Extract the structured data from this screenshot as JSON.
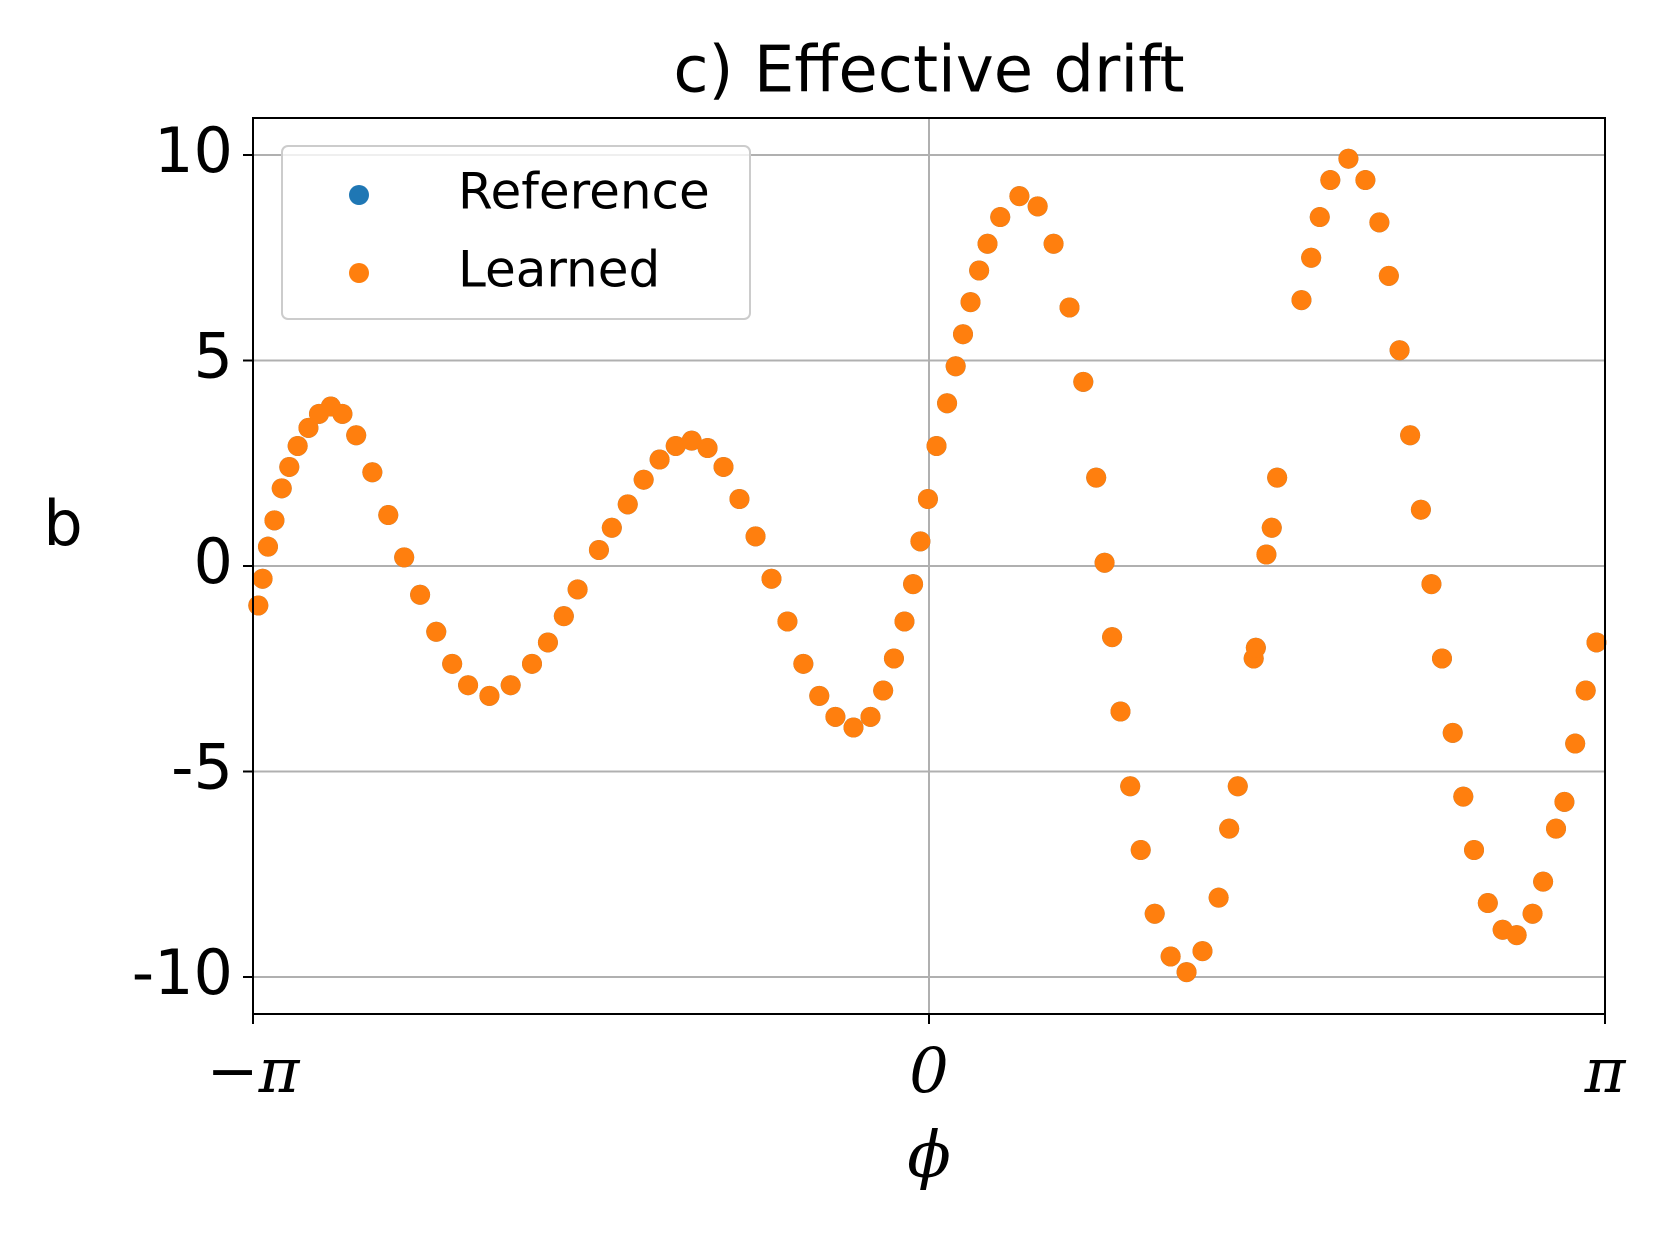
{
  "chart_data": {
    "type": "scatter",
    "title": "c) Effective drift",
    "x_label": "ϕ",
    "y_label": "b",
    "x": [
      -3.117,
      -3.097,
      -3.072,
      -3.042,
      -3.008,
      -2.973,
      -2.934,
      -2.884,
      -2.835,
      -2.78,
      -2.726,
      -2.662,
      -2.587,
      -2.513,
      -2.439,
      -2.365,
      -2.29,
      -2.216,
      -2.142,
      -2.043,
      -1.944,
      -1.845,
      -1.771,
      -1.697,
      -1.633,
      -1.534,
      -1.474,
      -1.4,
      -1.326,
      -1.252,
      -1.177,
      -1.103,
      -1.029,
      -0.955,
      -0.881,
      -0.806,
      -0.732,
      -0.658,
      -0.584,
      -0.51,
      -0.435,
      -0.351,
      -0.272,
      -0.213,
      -0.163,
      -0.114,
      -0.074,
      -0.04,
      -0.005,
      0.035,
      0.084,
      0.124,
      0.158,
      0.193,
      0.233,
      0.272,
      0.331,
      0.42,
      0.505,
      0.579,
      0.653,
      0.717,
      0.777,
      0.816,
      0.851,
      0.89,
      0.935,
      0.984,
      1.049,
      1.123,
      1.197,
      1.271,
      1.346,
      1.395,
      1.435,
      1.509,
      1.519,
      1.568,
      1.593,
      1.618,
      1.731,
      1.776,
      1.816,
      1.865,
      1.949,
      2.028,
      2.093,
      2.137,
      2.187,
      2.236,
      2.286,
      2.335,
      2.384,
      2.434,
      2.483,
      2.533,
      2.597,
      2.666,
      2.731,
      2.805,
      2.854,
      2.914,
      2.953,
      3.003,
      3.052,
      3.102
    ],
    "series": [
      {
        "name": "Reference",
        "color": "#1f77b4",
        "values": [
          -0.96,
          -0.31,
          0.47,
          1.11,
          1.89,
          2.41,
          2.92,
          3.36,
          3.7,
          3.88,
          3.7,
          3.18,
          2.28,
          1.24,
          0.21,
          -0.7,
          -1.6,
          -2.38,
          -2.9,
          -3.16,
          -2.9,
          -2.38,
          -1.86,
          -1.22,
          -0.57,
          0.39,
          0.93,
          1.5,
          2.1,
          2.59,
          2.92,
          3.05,
          2.87,
          2.41,
          1.63,
          0.72,
          -0.31,
          -1.35,
          -2.38,
          -3.16,
          -3.67,
          -3.93,
          -3.67,
          -3.03,
          -2.25,
          -1.35,
          -0.44,
          0.6,
          1.63,
          2.92,
          3.96,
          4.86,
          5.64,
          6.42,
          7.19,
          7.84,
          8.49,
          9.0,
          8.75,
          7.84,
          6.29,
          4.48,
          2.15,
          0.08,
          -1.73,
          -3.54,
          -5.36,
          -6.91,
          -8.46,
          -9.5,
          -9.88,
          -9.37,
          -8.07,
          -6.39,
          -5.36,
          -2.25,
          -1.99,
          0.28,
          0.93,
          2.15,
          6.47,
          7.5,
          8.49,
          9.39,
          9.91,
          9.39,
          8.36,
          7.06,
          5.25,
          3.18,
          1.37,
          -0.44,
          -2.25,
          -4.06,
          -5.61,
          -6.91,
          -8.2,
          -8.85,
          -8.98,
          -8.46,
          -7.68,
          -6.39,
          -5.74,
          -4.32,
          -3.03,
          -1.86
        ]
      },
      {
        "name": "Learned",
        "color": "#ff7f0e",
        "values": [
          -0.96,
          -0.31,
          0.47,
          1.11,
          1.89,
          2.41,
          2.92,
          3.36,
          3.7,
          3.88,
          3.7,
          3.18,
          2.28,
          1.24,
          0.21,
          -0.7,
          -1.6,
          -2.38,
          -2.9,
          -3.16,
          -2.9,
          -2.38,
          -1.86,
          -1.22,
          -0.57,
          0.39,
          0.93,
          1.5,
          2.1,
          2.59,
          2.92,
          3.05,
          2.87,
          2.41,
          1.63,
          0.72,
          -0.31,
          -1.35,
          -2.38,
          -3.16,
          -3.67,
          -3.93,
          -3.67,
          -3.03,
          -2.25,
          -1.35,
          -0.44,
          0.6,
          1.63,
          2.92,
          3.96,
          4.86,
          5.64,
          6.42,
          7.19,
          7.84,
          8.49,
          9.0,
          8.75,
          7.84,
          6.29,
          4.48,
          2.15,
          0.08,
          -1.73,
          -3.54,
          -5.36,
          -6.91,
          -8.46,
          -9.5,
          -9.88,
          -9.37,
          -8.07,
          -6.39,
          -5.36,
          -2.25,
          -1.99,
          0.28,
          0.93,
          2.15,
          6.47,
          7.5,
          8.49,
          9.39,
          9.91,
          9.39,
          8.36,
          7.06,
          5.25,
          3.18,
          1.37,
          -0.44,
          -2.25,
          -4.06,
          -5.61,
          -6.91,
          -8.2,
          -8.85,
          -8.98,
          -8.46,
          -7.68,
          -6.39,
          -5.74,
          -4.32,
          -3.03,
          -1.86
        ]
      }
    ],
    "xlim": [
      -3.14159,
      3.14159
    ],
    "xticks": [
      {
        "value": -3.14159,
        "label": "−π"
      },
      0,
      {
        "value": 3.14159,
        "label": "π"
      }
    ],
    "ylim": [
      -10.9,
      10.9
    ],
    "yticks": [
      -10,
      -5,
      0,
      5,
      10
    ],
    "grid": true,
    "legend": "upper left"
  }
}
